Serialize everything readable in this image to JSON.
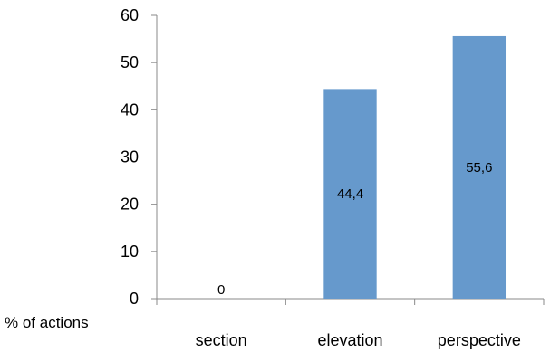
{
  "chart_data": {
    "type": "bar",
    "categories": [
      "section",
      "elevation",
      "perspective"
    ],
    "values": [
      0,
      44.4,
      55.6
    ],
    "data_labels": [
      "0",
      "44,4",
      "55,6"
    ],
    "ylabel": "% of actions",
    "ylim": [
      0,
      60
    ],
    "yticks": [
      0,
      10,
      20,
      30,
      40,
      50,
      60
    ],
    "grid": false,
    "legend": "none",
    "bar_color": "#6699cc"
  }
}
